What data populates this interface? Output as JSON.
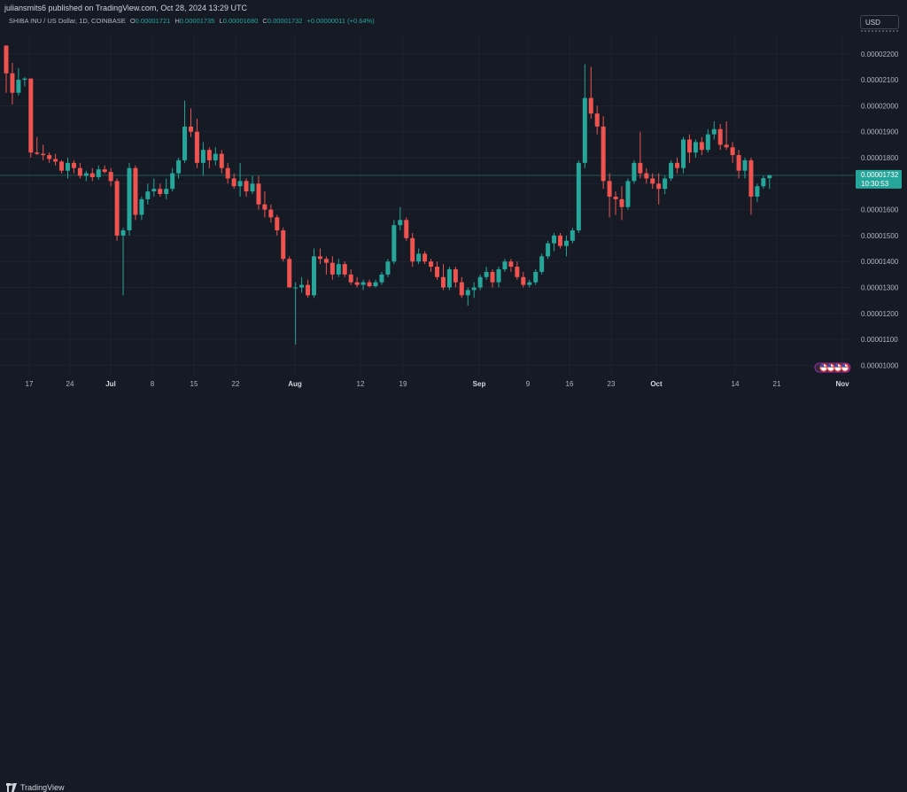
{
  "header": {
    "published": "juliansmits6 published on TradingView.com, Oct 28, 2024 13:29 UTC"
  },
  "legend": {
    "symbol": "SHIBA INU / US Dollar, 1D, COINBASE",
    "open_label": "O",
    "open": "0.00001721",
    "high_label": "H",
    "high": "0.00001735",
    "low_label": "L",
    "low": "0.00001680",
    "close_label": "C",
    "close": "0.00001732",
    "change": "+0.00000011 (+0.64%)"
  },
  "currency_button": "USD",
  "brand": "TradingView",
  "colors": {
    "up": "#26a69a",
    "down": "#ef5350",
    "background": "#161a25",
    "grid": "#1f2330",
    "text": "#b2b5be"
  },
  "chart_data": {
    "type": "candlestick",
    "title": "SHIBA INU / US Dollar, 1D, COINBASE",
    "price_tag": {
      "value": "0.00001732",
      "countdown": "10:30:53"
    },
    "y_ticks": [
      "0.00002200",
      "0.00002100",
      "0.00002000",
      "0.00001900",
      "0.00001800",
      "0.00001700",
      "0.00001600",
      "0.00001500",
      "0.00001400",
      "0.00001300",
      "0.00001200",
      "0.00001100",
      "0.00001000"
    ],
    "x_ticks": [
      "17",
      "24",
      "Jul",
      "8",
      "15",
      "22",
      "Aug",
      "12",
      "19",
      "Sep",
      "9",
      "16",
      "23",
      "Oct",
      "14",
      "21",
      "Nov"
    ],
    "ylim": [
      9.8e-06,
      2.3e-05
    ],
    "grid": true,
    "last_price": 1.732e-05,
    "candles": [
      [
        2.232,
        2.232,
        2.05,
        2.125
      ],
      [
        2.125,
        2.165,
        2.005,
        2.05
      ],
      [
        2.05,
        2.145,
        2.04,
        2.1
      ],
      [
        2.1,
        2.11,
        2.075,
        2.105
      ],
      [
        2.105,
        2.105,
        1.8,
        1.82
      ],
      [
        1.82,
        1.88,
        1.81,
        1.815
      ],
      [
        1.815,
        1.85,
        1.79,
        1.81
      ],
      [
        1.81,
        1.82,
        1.78,
        1.795
      ],
      [
        1.795,
        1.815,
        1.77,
        1.785
      ],
      [
        1.785,
        1.79,
        1.74,
        1.75
      ],
      [
        1.75,
        1.8,
        1.72,
        1.78
      ],
      [
        1.78,
        1.79,
        1.74,
        1.76
      ],
      [
        1.76,
        1.78,
        1.72,
        1.73
      ],
      [
        1.73,
        1.75,
        1.71,
        1.74
      ],
      [
        1.74,
        1.76,
        1.71,
        1.725
      ],
      [
        1.725,
        1.77,
        1.715,
        1.755
      ],
      [
        1.755,
        1.77,
        1.74,
        1.745
      ],
      [
        1.745,
        1.76,
        1.69,
        1.71
      ],
      [
        1.71,
        1.72,
        1.48,
        1.5
      ],
      [
        1.5,
        1.53,
        1.27,
        1.52
      ],
      [
        1.52,
        1.78,
        1.5,
        1.76
      ],
      [
        1.76,
        1.77,
        1.56,
        1.58
      ],
      [
        1.58,
        1.65,
        1.56,
        1.64
      ],
      [
        1.64,
        1.7,
        1.62,
        1.67
      ],
      [
        1.67,
        1.72,
        1.65,
        1.68
      ],
      [
        1.68,
        1.7,
        1.65,
        1.66
      ],
      [
        1.66,
        1.72,
        1.64,
        1.68
      ],
      [
        1.68,
        1.76,
        1.67,
        1.74
      ],
      [
        1.74,
        1.8,
        1.72,
        1.79
      ],
      [
        1.79,
        2.02,
        1.78,
        1.92
      ],
      [
        1.92,
        1.99,
        1.88,
        1.9
      ],
      [
        1.9,
        1.95,
        1.76,
        1.78
      ],
      [
        1.78,
        1.86,
        1.73,
        1.83
      ],
      [
        1.83,
        1.84,
        1.76,
        1.79
      ],
      [
        1.79,
        1.84,
        1.77,
        1.815
      ],
      [
        1.815,
        1.83,
        1.74,
        1.76
      ],
      [
        1.76,
        1.78,
        1.7,
        1.72
      ],
      [
        1.72,
        1.74,
        1.68,
        1.69
      ],
      [
        1.69,
        1.78,
        1.65,
        1.71
      ],
      [
        1.71,
        1.72,
        1.65,
        1.67
      ],
      [
        1.67,
        1.73,
        1.66,
        1.7
      ],
      [
        1.7,
        1.73,
        1.6,
        1.62
      ],
      [
        1.62,
        1.67,
        1.57,
        1.6
      ],
      [
        1.6,
        1.62,
        1.55,
        1.57
      ],
      [
        1.57,
        1.58,
        1.5,
        1.52
      ],
      [
        1.52,
        1.53,
        1.4,
        1.41
      ],
      [
        1.41,
        1.42,
        1.3,
        1.3
      ],
      [
        1.3,
        1.32,
        1.08,
        1.3
      ],
      [
        1.3,
        1.34,
        1.28,
        1.31
      ],
      [
        1.31,
        1.33,
        1.26,
        1.27
      ],
      [
        1.27,
        1.45,
        1.26,
        1.42
      ],
      [
        1.42,
        1.45,
        1.39,
        1.41
      ],
      [
        1.41,
        1.42,
        1.35,
        1.395
      ],
      [
        1.395,
        1.42,
        1.33,
        1.35
      ],
      [
        1.35,
        1.41,
        1.34,
        1.39
      ],
      [
        1.39,
        1.4,
        1.34,
        1.35
      ],
      [
        1.35,
        1.37,
        1.31,
        1.32
      ],
      [
        1.32,
        1.34,
        1.3,
        1.31
      ],
      [
        1.31,
        1.33,
        1.29,
        1.32
      ],
      [
        1.32,
        1.33,
        1.3,
        1.305
      ],
      [
        1.305,
        1.33,
        1.3,
        1.32
      ],
      [
        1.32,
        1.36,
        1.31,
        1.35
      ],
      [
        1.35,
        1.41,
        1.34,
        1.4
      ],
      [
        1.4,
        1.56,
        1.39,
        1.54
      ],
      [
        1.54,
        1.61,
        1.52,
        1.56
      ],
      [
        1.56,
        1.57,
        1.48,
        1.49
      ],
      [
        1.49,
        1.51,
        1.38,
        1.4
      ],
      [
        1.4,
        1.45,
        1.39,
        1.43
      ],
      [
        1.43,
        1.44,
        1.39,
        1.4
      ],
      [
        1.4,
        1.41,
        1.36,
        1.38
      ],
      [
        1.38,
        1.4,
        1.33,
        1.34
      ],
      [
        1.34,
        1.39,
        1.29,
        1.3
      ],
      [
        1.3,
        1.38,
        1.29,
        1.37
      ],
      [
        1.37,
        1.38,
        1.3,
        1.32
      ],
      [
        1.32,
        1.34,
        1.26,
        1.27
      ],
      [
        1.27,
        1.3,
        1.23,
        1.29
      ],
      [
        1.29,
        1.32,
        1.26,
        1.3
      ],
      [
        1.3,
        1.35,
        1.29,
        1.34
      ],
      [
        1.34,
        1.38,
        1.33,
        1.36
      ],
      [
        1.36,
        1.37,
        1.3,
        1.32
      ],
      [
        1.32,
        1.38,
        1.3,
        1.37
      ],
      [
        1.37,
        1.41,
        1.36,
        1.4
      ],
      [
        1.4,
        1.41,
        1.36,
        1.38
      ],
      [
        1.38,
        1.4,
        1.33,
        1.34
      ],
      [
        1.34,
        1.36,
        1.3,
        1.31
      ],
      [
        1.31,
        1.33,
        1.3,
        1.32
      ],
      [
        1.32,
        1.37,
        1.31,
        1.36
      ],
      [
        1.36,
        1.43,
        1.35,
        1.42
      ],
      [
        1.42,
        1.48,
        1.41,
        1.47
      ],
      [
        1.47,
        1.51,
        1.44,
        1.5
      ],
      [
        1.5,
        1.51,
        1.45,
        1.46
      ],
      [
        1.46,
        1.5,
        1.42,
        1.48
      ],
      [
        1.48,
        1.53,
        1.47,
        1.52
      ],
      [
        1.52,
        1.79,
        1.51,
        1.78
      ],
      [
        1.78,
        2.16,
        1.76,
        2.03
      ],
      [
        2.03,
        2.15,
        1.95,
        1.97
      ],
      [
        1.97,
        2.0,
        1.89,
        1.92
      ],
      [
        1.92,
        1.96,
        1.68,
        1.71
      ],
      [
        1.71,
        1.74,
        1.57,
        1.65
      ],
      [
        1.65,
        1.67,
        1.58,
        1.64
      ],
      [
        1.64,
        1.69,
        1.56,
        1.61
      ],
      [
        1.61,
        1.72,
        1.6,
        1.71
      ],
      [
        1.71,
        1.79,
        1.7,
        1.78
      ],
      [
        1.78,
        1.9,
        1.72,
        1.74
      ],
      [
        1.74,
        1.76,
        1.7,
        1.72
      ],
      [
        1.72,
        1.74,
        1.68,
        1.7
      ],
      [
        1.7,
        1.74,
        1.62,
        1.68
      ],
      [
        1.68,
        1.73,
        1.66,
        1.72
      ],
      [
        1.72,
        1.79,
        1.71,
        1.78
      ],
      [
        1.78,
        1.8,
        1.74,
        1.76
      ],
      [
        1.76,
        1.88,
        1.74,
        1.87
      ],
      [
        1.87,
        1.89,
        1.78,
        1.82
      ],
      [
        1.82,
        1.87,
        1.8,
        1.86
      ],
      [
        1.86,
        1.88,
        1.81,
        1.83
      ],
      [
        1.83,
        1.91,
        1.82,
        1.89
      ],
      [
        1.89,
        1.94,
        1.87,
        1.91
      ],
      [
        1.91,
        1.93,
        1.83,
        1.85
      ],
      [
        1.85,
        1.94,
        1.83,
        1.84
      ],
      [
        1.84,
        1.86,
        1.78,
        1.81
      ],
      [
        1.81,
        1.83,
        1.72,
        1.75
      ],
      [
        1.75,
        1.8,
        1.72,
        1.79
      ],
      [
        1.79,
        1.8,
        1.58,
        1.65
      ],
      [
        1.65,
        1.7,
        1.63,
        1.69
      ],
      [
        1.69,
        1.73,
        1.68,
        1.721
      ],
      [
        1.721,
        1.735,
        1.68,
        1.732
      ]
    ]
  }
}
